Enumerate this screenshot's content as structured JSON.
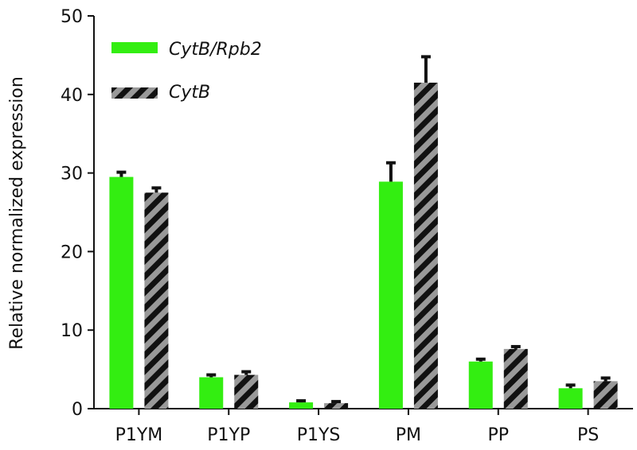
{
  "chart_data": {
    "type": "bar",
    "categories": [
      "P1YM",
      "P1YP",
      "P1YS",
      "PM",
      "PP",
      "PS"
    ],
    "series": [
      {
        "name": "CytB/Rpb2",
        "values": [
          29.5,
          4.0,
          0.8,
          28.9,
          6.0,
          2.6
        ],
        "errors": [
          0.6,
          0.3,
          0.2,
          2.4,
          0.3,
          0.4
        ],
        "color": "#33ee11",
        "pattern": "solid"
      },
      {
        "name": "CytB",
        "values": [
          27.5,
          4.3,
          0.7,
          41.5,
          7.6,
          3.5
        ],
        "errors": [
          0.6,
          0.4,
          0.2,
          3.3,
          0.3,
          0.4
        ],
        "color": "#111111",
        "pattern": "diagonal-stripes",
        "stripe_color": "#999999"
      }
    ],
    "xlabel": "",
    "ylabel": "Relative normalized expression",
    "ylim": [
      0,
      50
    ],
    "yticks": [
      0,
      10,
      20,
      30,
      40,
      50
    ],
    "grid": false,
    "legend": "top-left"
  }
}
